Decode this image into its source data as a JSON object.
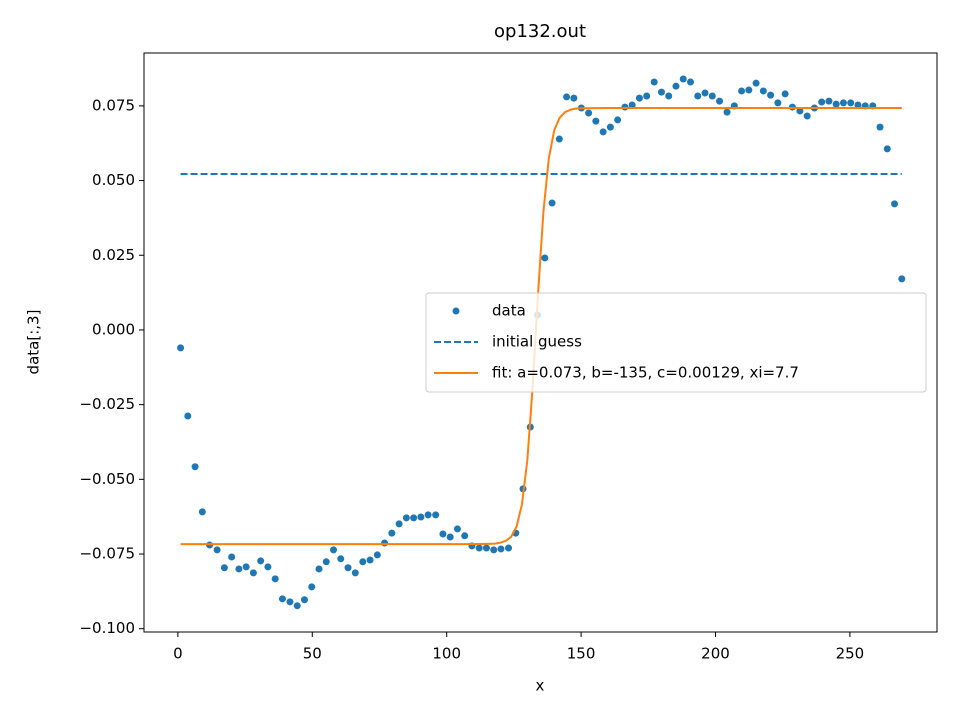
{
  "chart_data": {
    "type": "scatter",
    "title": "op132.out",
    "xlabel": "x",
    "ylabel": "data[:,3]",
    "xlim": [
      -12.6,
      282.4
    ],
    "ylim": [
      -0.1011,
      0.0927
    ],
    "xticks": [
      0,
      50,
      100,
      150,
      200,
      250
    ],
    "yticks": [
      {
        "value": -0.1,
        "label": "−0.100"
      },
      {
        "value": -0.075,
        "label": "−0.075"
      },
      {
        "value": -0.05,
        "label": "−0.050"
      },
      {
        "value": -0.025,
        "label": "−0.025"
      },
      {
        "value": 0,
        "label": "0.000"
      },
      {
        "value": 0.025,
        "label": "0.025"
      },
      {
        "value": 0.05,
        "label": "0.050"
      },
      {
        "value": 0.075,
        "label": "0.075"
      }
    ],
    "grid": false,
    "legend": "center right",
    "series": [
      {
        "name": "data",
        "type": "scatter",
        "color": "#1f77b4",
        "x": [
          1,
          3.7,
          6.4,
          9.1,
          11.8,
          14.6,
          17.3,
          20,
          22.7,
          25.4,
          28.1,
          30.8,
          33.5,
          36.2,
          38.9,
          41.7,
          44.4,
          47.1,
          49.8,
          52.5,
          55.2,
          57.9,
          60.6,
          63.3,
          66,
          68.8,
          71.5,
          74.2,
          76.9,
          79.6,
          82.3,
          85,
          87.7,
          90.4,
          93.1,
          95.9,
          98.6,
          101.3,
          104,
          106.7,
          109.4,
          112.1,
          114.8,
          117.5,
          120.2,
          123,
          125.7,
          128.4,
          131.1,
          133.8,
          136.5,
          139.2,
          141.9,
          144.6,
          147.3,
          150.1,
          152.8,
          155.5,
          158.2,
          160.9,
          163.6,
          166.3,
          169,
          171.7,
          174.4,
          177.2,
          179.9,
          182.6,
          185.3,
          188,
          190.7,
          193.4,
          196.1,
          198.8,
          201.5,
          204.3,
          207,
          209.7,
          212.4,
          215.1,
          217.8,
          220.5,
          223.2,
          225.9,
          228.6,
          231.4,
          234.1,
          236.8,
          239.5,
          242.2,
          244.9,
          247.6,
          250.3,
          253,
          255.7,
          258.5,
          261.2,
          263.9,
          266.6,
          269.3
        ],
        "values": [
          -0.006,
          -0.0288,
          -0.0458,
          -0.0609,
          -0.072,
          -0.0736,
          -0.0796,
          -0.076,
          -0.08,
          -0.0793,
          -0.0813,
          -0.0773,
          -0.0793,
          -0.0833,
          -0.09,
          -0.091,
          -0.0923,
          -0.0903,
          -0.086,
          -0.08,
          -0.0776,
          -0.0736,
          -0.0766,
          -0.0796,
          -0.0813,
          -0.0776,
          -0.077,
          -0.0753,
          -0.0713,
          -0.068,
          -0.0649,
          -0.0629,
          -0.0629,
          -0.0626,
          -0.0619,
          -0.0619,
          -0.0683,
          -0.0693,
          -0.0666,
          -0.0689,
          -0.0723,
          -0.073,
          -0.073,
          -0.0736,
          -0.0733,
          -0.073,
          -0.068,
          -0.0532,
          -0.0325,
          0.005,
          0.0241,
          0.0425,
          0.0639,
          0.078,
          0.0776,
          0.0743,
          0.0726,
          0.0699,
          0.0663,
          0.0679,
          0.0703,
          0.0746,
          0.0753,
          0.0776,
          0.0783,
          0.083,
          0.0796,
          0.0783,
          0.0816,
          0.084,
          0.083,
          0.0783,
          0.0793,
          0.0783,
          0.0766,
          0.0729,
          0.075,
          0.08,
          0.0803,
          0.0826,
          0.08,
          0.0786,
          0.076,
          0.079,
          0.0746,
          0.0733,
          0.0716,
          0.0743,
          0.0763,
          0.0766,
          0.0756,
          0.076,
          0.076,
          0.0753,
          0.075,
          0.075,
          0.0679,
          0.0606,
          0.0422,
          0.0171
        ]
      },
      {
        "name": "initial guess",
        "type": "line",
        "linestyle": "dashed",
        "color": "#1f77b4",
        "x": [
          1,
          269.3
        ],
        "values": [
          0.0522,
          0.0522
        ]
      },
      {
        "name": "fit: a=0.073, b=-135, c=0.00129, xi=7.7",
        "type": "line",
        "linestyle": "solid",
        "color": "#ff7f0e",
        "x": [
          1,
          100,
          110,
          115,
          118,
          120,
          122,
          124,
          126,
          128,
          130,
          132,
          134,
          136,
          138,
          140,
          142,
          144,
          146,
          148,
          150,
          160,
          269.3
        ],
        "values": [
          -0.0717,
          -0.0717,
          -0.0717,
          -0.0716,
          -0.0715,
          -0.0712,
          -0.0706,
          -0.0692,
          -0.0658,
          -0.0584,
          -0.0436,
          -0.0188,
          0.0123,
          0.0397,
          0.0575,
          0.0668,
          0.071,
          0.0729,
          0.0737,
          0.0741,
          0.0742,
          0.0743,
          0.0743
        ]
      }
    ]
  }
}
